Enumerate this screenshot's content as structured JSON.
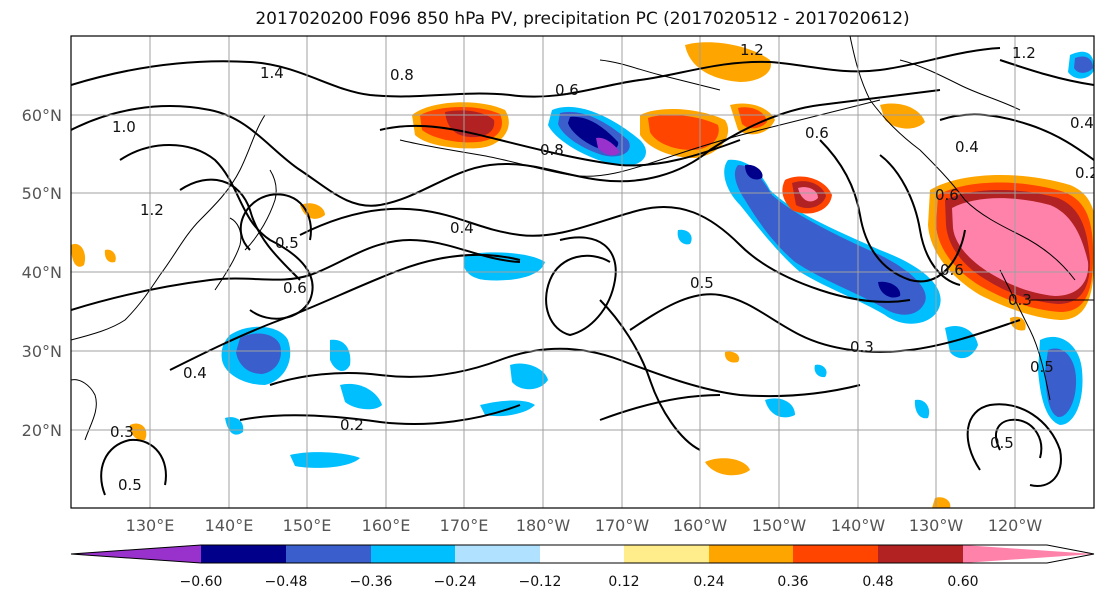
{
  "title": "2017020200 F096 850 hPa PV, precipitation PC (2017020512 - 2017020612)",
  "lon_labels": [
    "130°E",
    "140°E",
    "150°E",
    "160°E",
    "170°E",
    "180°W",
    "170°W",
    "160°W",
    "150°W",
    "140°W",
    "130°W",
    "120°W"
  ],
  "lat_labels": [
    "60°N",
    "50°N",
    "40°N",
    "30°N",
    "20°N"
  ],
  "colorbar": {
    "colors": [
      "#9932cc",
      "#00008b",
      "#3a5fcd",
      "#00bfff",
      "#b0e2ff",
      "#ffffff",
      "#ffec8b",
      "#ffa500",
      "#ff4500",
      "#b22222",
      "#ff82ab"
    ],
    "labels": [
      "−0.60",
      "−0.48",
      "−0.36",
      "−0.24",
      "−0.12",
      "0.12",
      "0.24",
      "0.36",
      "0.48",
      "0.60"
    ]
  },
  "contour_labels": [
    "1.4",
    "1.2",
    "1.2",
    "1.0",
    "1.2",
    "0.8",
    "0.6",
    "0.8",
    "0.6",
    "0.4",
    "0.5",
    "0.6",
    "0.5",
    "0.4",
    "0.3",
    "0.3",
    "0.2",
    "0.4",
    "0.6",
    "0.6",
    "0.4",
    "0.5",
    "0.3",
    "0.5",
    "0.2",
    "0.5"
  ]
}
